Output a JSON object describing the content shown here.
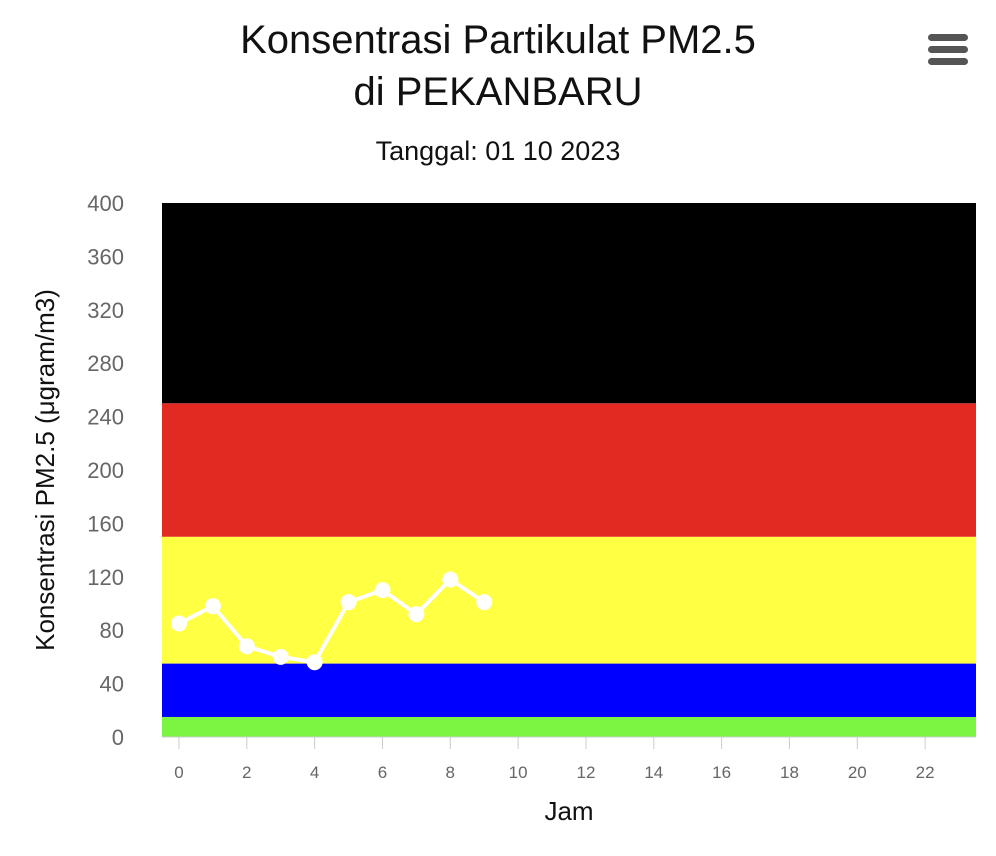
{
  "title_line1": "Konsentrasi Partikulat PM2.5",
  "title_line2": "di PEKANBARU",
  "subtitle": "Tanggal: 01 10 2023",
  "menu_icon": "hamburger-menu-icon",
  "chart_data": {
    "type": "line",
    "title": "Konsentrasi Partikulat PM2.5 di PEKANBARU",
    "subtitle": "Tanggal: 01 10 2023",
    "xlabel": "Jam",
    "ylabel": "Konsentrasi PM2.5 (μgram/m3)",
    "xlim": [
      -0.5,
      23.5
    ],
    "ylim": [
      0,
      400
    ],
    "x_ticks": [
      0,
      2,
      4,
      6,
      8,
      10,
      12,
      14,
      16,
      18,
      20,
      22
    ],
    "y_ticks": [
      0,
      40,
      80,
      120,
      160,
      200,
      240,
      280,
      320,
      360,
      400
    ],
    "grid": false,
    "legend": "none",
    "bands": [
      {
        "from": 0,
        "to": 15,
        "color": "#7bf442"
      },
      {
        "from": 15,
        "to": 55,
        "color": "#0000ff"
      },
      {
        "from": 55,
        "to": 150,
        "color": "#ffff44"
      },
      {
        "from": 150,
        "to": 250,
        "color": "#e32a22"
      },
      {
        "from": 250,
        "to": 400,
        "color": "#000000"
      }
    ],
    "series": [
      {
        "color": "#ffffff",
        "x": [
          0,
          1,
          2,
          3,
          4,
          5,
          6,
          7,
          8,
          9
        ],
        "y": [
          85,
          98,
          68,
          60,
          56,
          101,
          110,
          92,
          118,
          101
        ]
      }
    ]
  }
}
